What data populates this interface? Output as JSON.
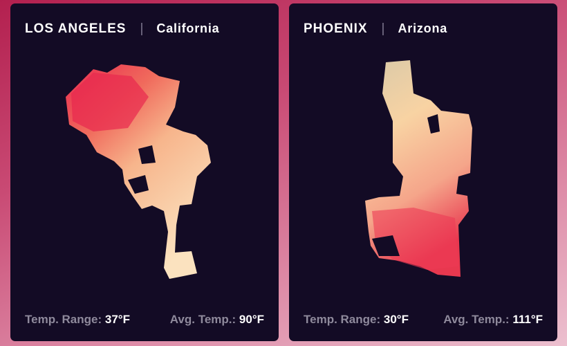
{
  "cards": [
    {
      "city": "LOS ANGELES",
      "state": "California",
      "temp_range_label": "Temp. Range:",
      "temp_range": "37°F",
      "avg_temp_label": "Avg. Temp.:",
      "avg_temp": "90°F"
    },
    {
      "city": "PHOENIX",
      "state": "Arizona",
      "temp_range_label": "Temp. Range:",
      "temp_range": "30°F",
      "avg_temp_label": "Avg. Temp.:",
      "avg_temp": "111°F"
    }
  ]
}
